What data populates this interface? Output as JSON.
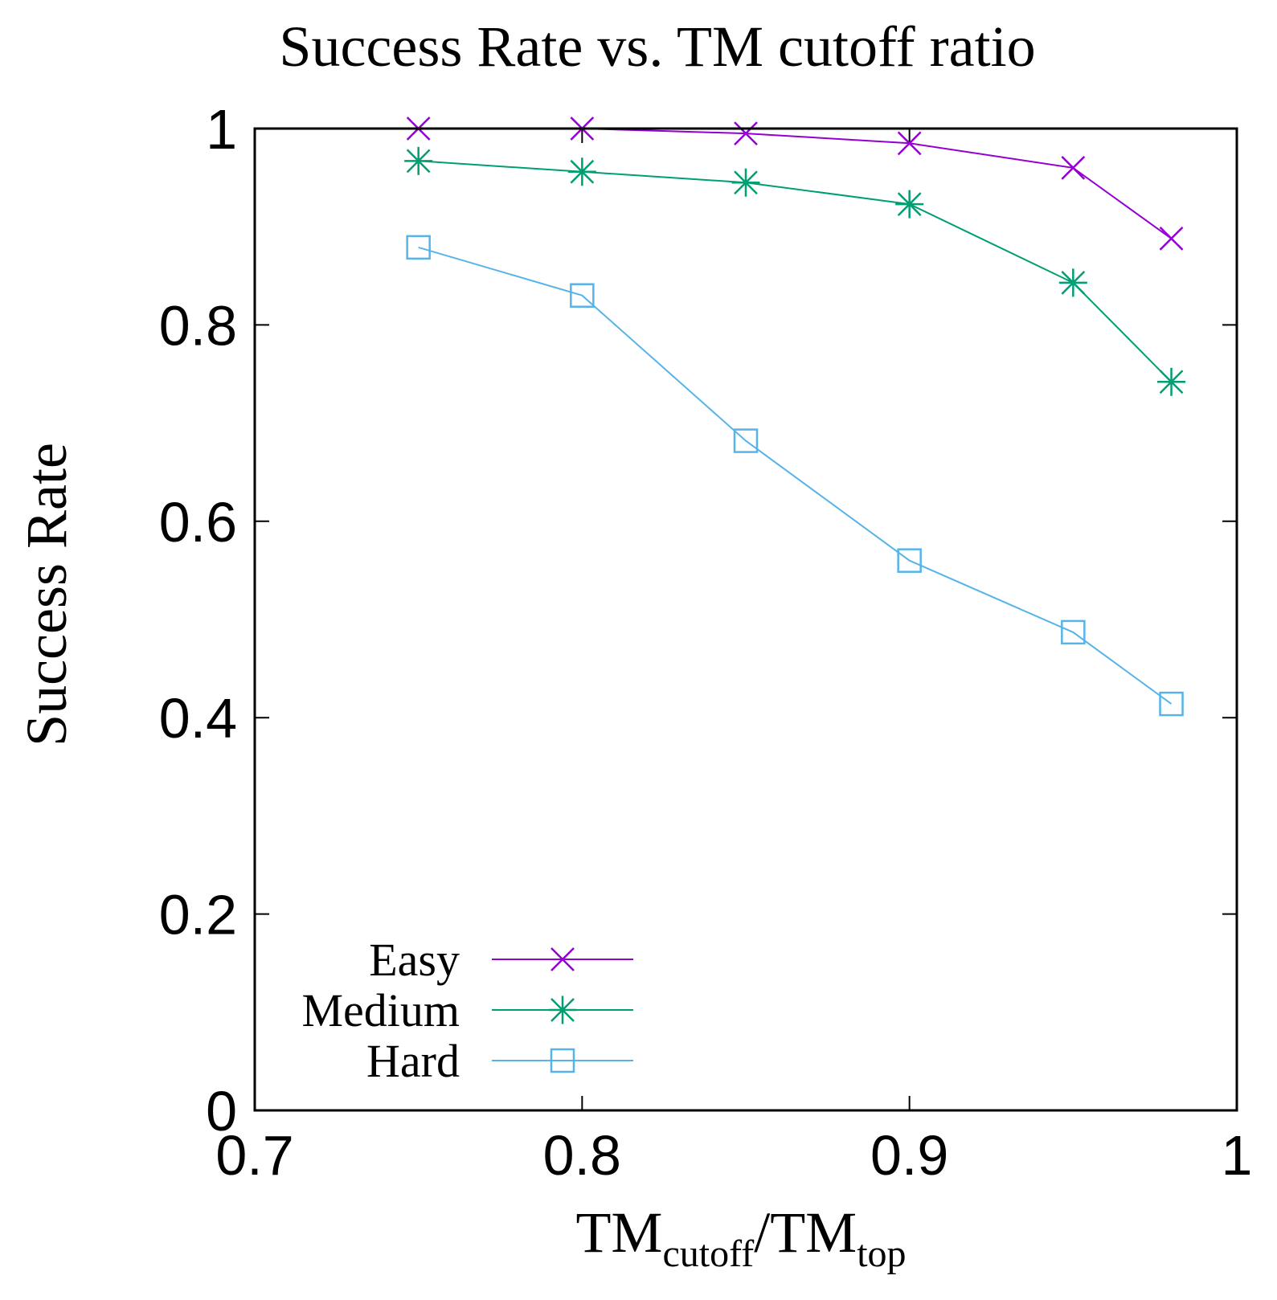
{
  "chart_data": {
    "type": "line",
    "title": "Success Rate vs. TM cutoff ratio",
    "xlabel": {
      "base1": "TM",
      "sub1": "cutoff",
      "mid": "/TM",
      "sub2": "top"
    },
    "ylabel": "Success Rate",
    "xlim": [
      0.7,
      1.0
    ],
    "ylim": [
      0,
      1.0
    ],
    "xticks": [
      0.7,
      0.8,
      0.9,
      1.0
    ],
    "xtick_labels": [
      "0.7",
      "0.8",
      "0.9",
      "1"
    ],
    "yticks": [
      0,
      0.2,
      0.4,
      0.6,
      0.8,
      1.0
    ],
    "ytick_labels": [
      "0",
      "0.2",
      "0.4",
      "0.6",
      "0.8",
      "1"
    ],
    "grid": false,
    "legend_position": "bottom-left",
    "x": [
      0.75,
      0.8,
      0.85,
      0.9,
      0.95,
      0.98
    ],
    "series": [
      {
        "name": "Easy",
        "values": [
          1.0,
          1.0,
          0.995,
          0.985,
          0.96,
          0.888
        ],
        "color": "#9400d3",
        "marker": "x"
      },
      {
        "name": "Medium",
        "values": [
          0.967,
          0.956,
          0.945,
          0.923,
          0.843,
          0.742
        ],
        "color": "#009e73",
        "marker": "star"
      },
      {
        "name": "Hard",
        "values": [
          0.879,
          0.83,
          0.682,
          0.56,
          0.487,
          0.414
        ],
        "color": "#56b4e9",
        "marker": "square"
      }
    ]
  }
}
